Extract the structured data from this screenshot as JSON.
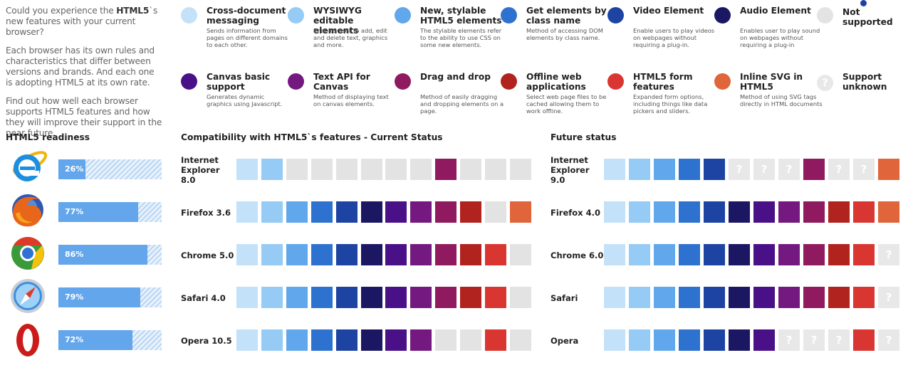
{
  "intro": {
    "line1_a": "Could you experience the ",
    "line1_b": "HTML5",
    "line1_c": "`s new features with your current browser?",
    "p2": "Each browser has its own rules and characteristics that differ between versions and brands. And each one is adopting HTML5 at its own rate.",
    "p3": "Find out how well each browser supports HTML5 features and how they will improve their support in the near future."
  },
  "colors": {
    "cross_document": "#c3e2fa",
    "wysiwyg": "#95cbf4",
    "stylable": "#61a7ec",
    "get_by_class": "#2e72cf",
    "video": "#1e44a3",
    "audio": "#1c1763",
    "canvas": "#4a1088",
    "text_api": "#74197f",
    "drag_drop": "#8f1a5f",
    "offline": "#b1231f",
    "forms": "#da3631",
    "inline_svg": "#e0653a",
    "not_supported": "#e3e3e3",
    "unknown": "#e8e8e8"
  },
  "legend": [
    {
      "key": "cross_document",
      "title": "Cross-document messaging",
      "desc": "Sends information from pages on different domains to each other."
    },
    {
      "key": "wysiwyg",
      "title": "WYSIWYG editable elements",
      "desc": "Enables user to add, edit and delete text, graphics and more."
    },
    {
      "key": "stylable",
      "title": "New, stylable HTML5 elements",
      "desc": "The stylable elements refer to the ability to use CSS on some new elements."
    },
    {
      "key": "get_by_class",
      "title": "Get elements by class name",
      "desc": "Method of accessing DOM elements by class name."
    },
    {
      "key": "video",
      "title": "Video Element",
      "desc": "Enable users to play videos on webpages without requiring a plug-in."
    },
    {
      "key": "audio",
      "title": "Audio Element",
      "desc": "Enables user to play sound on webpages without requiring a plug-in"
    },
    {
      "key": "not_supported",
      "title": "Not supported",
      "desc": ""
    },
    {
      "key": "canvas",
      "title": "Canvas basic support",
      "desc": "Generates dynamic graphics using Javascript."
    },
    {
      "key": "text_api",
      "title": "Text API for Canvas",
      "desc": "Method of displaying text on canvas elements."
    },
    {
      "key": "drag_drop",
      "title": "Drag and drop",
      "desc": "Method of easily dragging and dropping elements on a page."
    },
    {
      "key": "offline",
      "title": "Offline web applications",
      "desc": "Select web page files to be cached allowing them to work offline."
    },
    {
      "key": "forms",
      "title": "HTML5 form features",
      "desc": "Expanded form options, including things like data pickers and sliders."
    },
    {
      "key": "inline_svg",
      "title": "Inline SVG in HTML5",
      "desc": "Method of using SVG tags directly in HTML documents"
    },
    {
      "key": "unknown",
      "title": "Support unknown",
      "desc": "",
      "glyph": "?"
    }
  ],
  "unknown_glyph": "?",
  "chart_data": [
    {
      "type": "bar",
      "title": "HTML5 readiness",
      "categories": [
        "Internet Explorer 8.0",
        "Firefox 3.6",
        "Chrome 5.0",
        "Safari 4.0",
        "Opera 10.5"
      ],
      "values": [
        26,
        77,
        86,
        79,
        72
      ],
      "value_labels": [
        "26%",
        "77%",
        "86%",
        "79%",
        "72%"
      ],
      "ylim": [
        0,
        100
      ]
    },
    {
      "type": "table",
      "title": "Compatibility with HTML5`s features - Current Status",
      "columns": [
        "cross_document",
        "wysiwyg",
        "stylable",
        "get_by_class",
        "video",
        "audio",
        "canvas",
        "text_api",
        "drag_drop",
        "offline",
        "forms",
        "inline_svg"
      ],
      "rows": [
        {
          "label": "Internet Explorer 8.0",
          "cells": [
            "cross_document",
            "wysiwyg",
            "not_supported",
            "not_supported",
            "not_supported",
            "not_supported",
            "not_supported",
            "not_supported",
            "drag_drop",
            "not_supported",
            "not_supported",
            "not_supported"
          ]
        },
        {
          "label": "Firefox 3.6",
          "cells": [
            "cross_document",
            "wysiwyg",
            "stylable",
            "get_by_class",
            "video",
            "audio",
            "canvas",
            "text_api",
            "drag_drop",
            "offline",
            "not_supported",
            "inline_svg"
          ]
        },
        {
          "label": "Chrome 5.0",
          "cells": [
            "cross_document",
            "wysiwyg",
            "stylable",
            "get_by_class",
            "video",
            "audio",
            "canvas",
            "text_api",
            "drag_drop",
            "offline",
            "forms",
            "not_supported"
          ]
        },
        {
          "label": "Safari 4.0",
          "cells": [
            "cross_document",
            "wysiwyg",
            "stylable",
            "get_by_class",
            "video",
            "audio",
            "canvas",
            "text_api",
            "drag_drop",
            "offline",
            "forms",
            "not_supported"
          ]
        },
        {
          "label": "Opera 10.5",
          "cells": [
            "cross_document",
            "wysiwyg",
            "stylable",
            "get_by_class",
            "video",
            "audio",
            "canvas",
            "text_api",
            "not_supported",
            "not_supported",
            "forms",
            "not_supported"
          ]
        }
      ]
    },
    {
      "type": "table",
      "title": "Future status",
      "columns": [
        "cross_document",
        "wysiwyg",
        "stylable",
        "get_by_class",
        "video",
        "audio",
        "canvas",
        "text_api",
        "drag_drop",
        "offline",
        "forms",
        "inline_svg"
      ],
      "rows": [
        {
          "label": "Internet Explorer 9.0",
          "cells": [
            "cross_document",
            "wysiwyg",
            "stylable",
            "get_by_class",
            "video",
            "unknown",
            "unknown",
            "unknown",
            "drag_drop",
            "unknown",
            "unknown",
            "inline_svg"
          ]
        },
        {
          "label": "Firefox 4.0",
          "cells": [
            "cross_document",
            "wysiwyg",
            "stylable",
            "get_by_class",
            "video",
            "audio",
            "canvas",
            "text_api",
            "drag_drop",
            "offline",
            "forms",
            "inline_svg"
          ]
        },
        {
          "label": "Chrome 6.0",
          "cells": [
            "cross_document",
            "wysiwyg",
            "stylable",
            "get_by_class",
            "video",
            "audio",
            "canvas",
            "text_api",
            "drag_drop",
            "offline",
            "forms",
            "unknown"
          ]
        },
        {
          "label": "Safari",
          "cells": [
            "cross_document",
            "wysiwyg",
            "stylable",
            "get_by_class",
            "video",
            "audio",
            "canvas",
            "text_api",
            "drag_drop",
            "offline",
            "forms",
            "unknown"
          ]
        },
        {
          "label": "Opera",
          "cells": [
            "cross_document",
            "wysiwyg",
            "stylable",
            "get_by_class",
            "video",
            "audio",
            "canvas",
            "unknown",
            "unknown",
            "unknown",
            "forms",
            "unknown"
          ]
        }
      ]
    }
  ],
  "icons": [
    "internet-explorer-logo-icon",
    "firefox-logo-icon",
    "chrome-logo-icon",
    "safari-logo-icon",
    "opera-logo-icon"
  ]
}
